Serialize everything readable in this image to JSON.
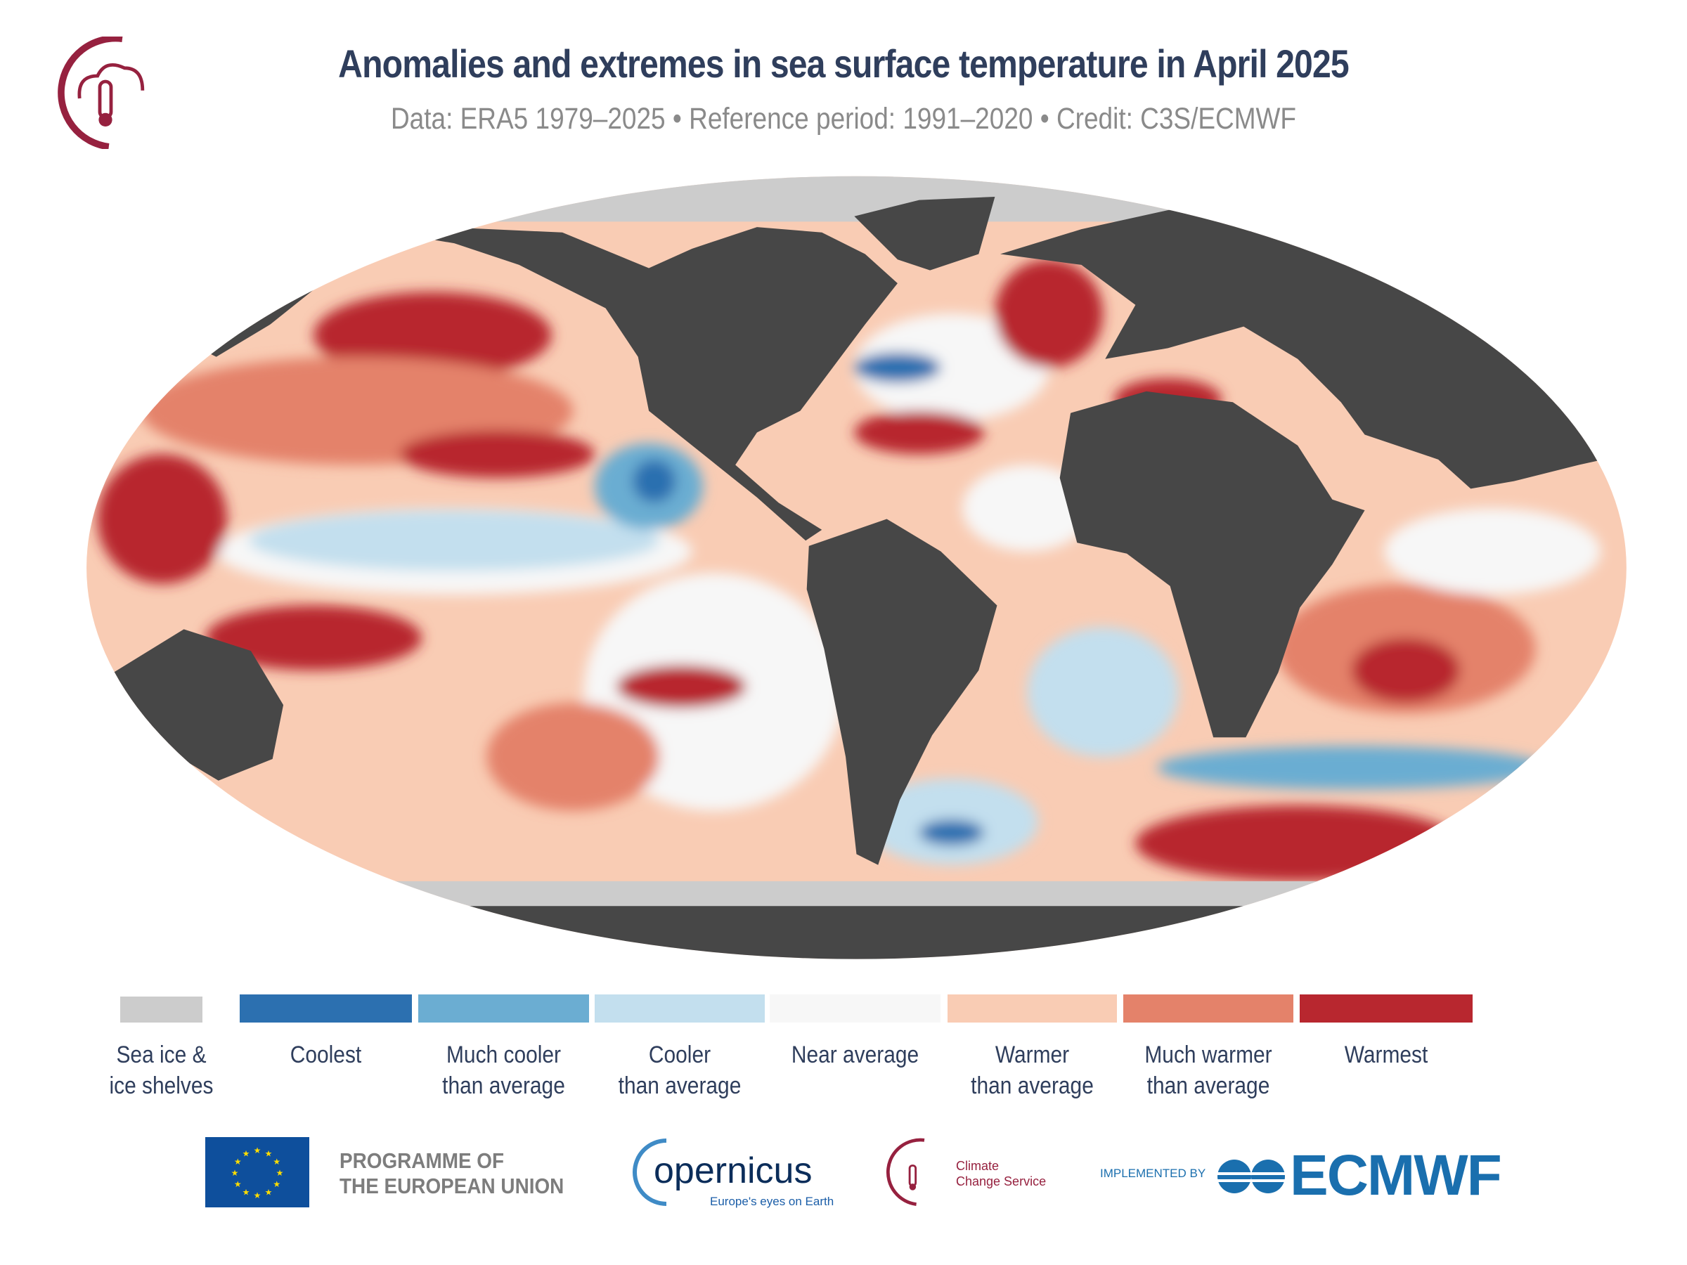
{
  "header": {
    "title": "Anomalies and extremes in sea surface temperature in April 2025",
    "subtitle": "Data: ERA5 1979–2025 • Reference period: 1991–2020 • Credit: C3S/ECMWF"
  },
  "map": {
    "projection": "Robinson",
    "variable": "sea surface temperature anomaly category",
    "colors": {
      "land": "#474747",
      "sea_ice": "#cccccc",
      "coolest": "#2c70b0",
      "much_cooler": "#6badd2",
      "cooler": "#c3dfee",
      "near_average": "#f7f7f7",
      "warmer": "#f9ccb4",
      "much_warmer": "#e4826a",
      "warmest": "#b8272f"
    }
  },
  "legend": {
    "items": [
      {
        "line1": "Sea ice &",
        "line2": "ice shelves",
        "color": "#cccccc"
      },
      {
        "line1": "Coolest",
        "line2": "",
        "color": "#2c70b0"
      },
      {
        "line1": "Much cooler",
        "line2": "than average",
        "color": "#6badd2"
      },
      {
        "line1": "Cooler",
        "line2": "than average",
        "color": "#c3dfee"
      },
      {
        "line1": "Near average",
        "line2": "",
        "color": "#f7f7f7"
      },
      {
        "line1": "Warmer",
        "line2": "than average",
        "color": "#f9ccb4"
      },
      {
        "line1": "Much warmer",
        "line2": "than average",
        "color": "#e4826a"
      },
      {
        "line1": "Warmest",
        "line2": "",
        "color": "#b8272f"
      }
    ]
  },
  "footer": {
    "eu_line1": "PROGRAMME OF",
    "eu_line2": "THE EUROPEAN UNION",
    "copernicus": "opernicus",
    "copernicus_tagline": "Europe's eyes on Earth",
    "ccs_line1": "Climate",
    "ccs_line2": "Change Service",
    "implemented_by": "IMPLEMENTED BY",
    "ecmwf": "ECMWF"
  }
}
